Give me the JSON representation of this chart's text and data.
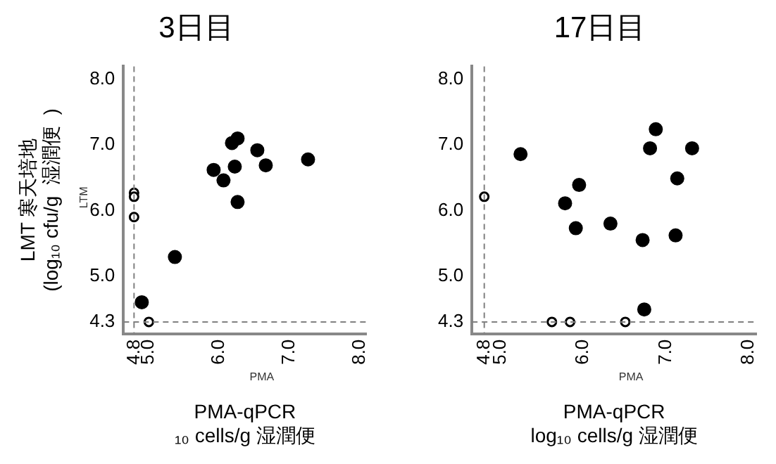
{
  "chart_data": [
    {
      "type": "scatter",
      "title": "3日目",
      "xlabel": "PMA-qPCR\n₁₀ cells/g 湿潤便",
      "ylabel": "LMT 寒天培地\n(log₁₀ cfu/g  湿潤便  )",
      "annotations": [
        "LTM",
        "PMA"
      ],
      "series": [
        {
          "color": "#000000",
          "x": [
            5.93,
            6.07,
            6.19,
            6.27,
            6.23,
            6.27,
            6.55,
            6.67,
            7.27,
            5.38,
            4.91
          ],
          "values": [
            6.62,
            6.46,
            7.03,
            7.1,
            6.67,
            6.13,
            6.92,
            6.69,
            6.78,
            5.29,
            4.6
          ]
        },
        {
          "color": "#000000",
          "x": [
            4.8,
            4.8,
            4.8,
            5.01
          ],
          "values": [
            6.27,
            6.21,
            5.9,
            4.3
          ]
        }
      ],
      "xlim": [
        4.65,
        8.1
      ],
      "ylim": [
        4.12,
        8.2
      ],
      "xticks": [
        4.8,
        {
          "value": 5,
          "label": "5.0"
        },
        {
          "value": 6,
          "label": "6.0"
        },
        {
          "value": 7,
          "label": "7.0"
        },
        {
          "value": 8,
          "label": "8.0"
        }
      ],
      "yticks": [
        4.3,
        {
          "value": 5,
          "label": "5.0"
        },
        {
          "value": 6,
          "label": "6.0"
        },
        {
          "value": 7,
          "label": "7.0"
        },
        {
          "value": 8,
          "label": "8.0"
        }
      ],
      "ref_lines": [
        {
          "axis": "x",
          "value": 4.8,
          "color": "#808080",
          "line_style": "dashed"
        },
        {
          "axis": "y",
          "value": 4.3,
          "color": "#808080",
          "line_style": "dashed"
        }
      ],
      "grid": false,
      "legend": false,
      "marker": "circle"
    },
    {
      "type": "scatter",
      "title": "17日目",
      "xlabel": "PMA-qPCR\nlog₁₀ cells/g 湿潤便",
      "annotations": [
        "PMA"
      ],
      "series": [
        {
          "color": "#000000",
          "x": [
            5.24,
            5.95,
            5.78,
            5.91,
            6.33,
            6.72,
            6.74,
            6.81,
            6.88,
            7.32,
            7.14,
            7.12
          ],
          "values": [
            6.86,
            6.39,
            6.11,
            5.73,
            5.8,
            5.55,
            4.49,
            6.95,
            7.24,
            6.95,
            6.49,
            5.62
          ]
        },
        {
          "color": "#000000",
          "x": [
            4.8,
            5.62,
            5.84,
            6.51
          ],
          "values": [
            6.21,
            4.3,
            4.3,
            4.3
          ]
        }
      ],
      "xlim": [
        4.65,
        8.1
      ],
      "ylim": [
        4.12,
        8.2
      ],
      "xticks": [
        4.8,
        {
          "value": 5,
          "label": "5.0"
        },
        {
          "value": 6,
          "label": "6.0"
        },
        {
          "value": 7,
          "label": "7.0"
        },
        {
          "value": 8,
          "label": "8.0"
        }
      ],
      "yticks": [
        4.3,
        {
          "value": 5,
          "label": "5.0"
        },
        {
          "value": 6,
          "label": "6.0"
        },
        {
          "value": 7,
          "label": "7.0"
        },
        {
          "value": 8,
          "label": "8.0"
        }
      ],
      "ref_lines": [
        {
          "axis": "x",
          "value": 4.8,
          "color": "#808080",
          "line_style": "dashed"
        },
        {
          "axis": "y",
          "value": 4.3,
          "color": "#808080",
          "line_style": "dashed"
        }
      ],
      "grid": false,
      "legend": false,
      "marker": "circle"
    }
  ]
}
